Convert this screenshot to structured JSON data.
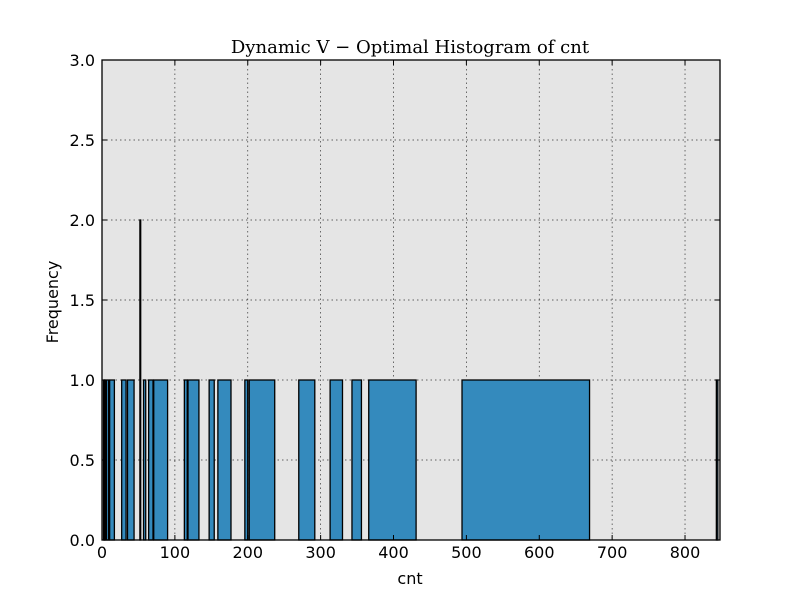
{
  "chart_data": {
    "type": "bar",
    "title": "Dynamic V − Optimal Histogram of cnt",
    "xlabel": "cnt",
    "ylabel": "Frequency",
    "xlim": [
      0,
      848
    ],
    "ylim": [
      0,
      3.0
    ],
    "grid": true,
    "background_color": "#e5e5e5",
    "bar_color": "#348abd",
    "xticks": [
      0,
      100,
      200,
      300,
      400,
      500,
      600,
      700,
      800
    ],
    "yticks": [
      "0.0",
      "0.5",
      "1.0",
      "1.5",
      "2.0",
      "2.5",
      "3.0"
    ],
    "bins": [
      {
        "x0": 2,
        "x1": 2.6,
        "value": 1
      },
      {
        "x0": 3.5,
        "x1": 4.3,
        "value": 1
      },
      {
        "x0": 6,
        "x1": 9,
        "value": 1
      },
      {
        "x0": 10.5,
        "x1": 17,
        "value": 1
      },
      {
        "x0": 27,
        "x1": 33,
        "value": 1
      },
      {
        "x0": 35,
        "x1": 44,
        "value": 1
      },
      {
        "x0": 52,
        "x1": 53,
        "value": 2
      },
      {
        "x0": 57,
        "x1": 60,
        "value": 1
      },
      {
        "x0": 64,
        "x1": 70,
        "value": 1
      },
      {
        "x0": 71,
        "x1": 90,
        "value": 1
      },
      {
        "x0": 113,
        "x1": 117,
        "value": 1
      },
      {
        "x0": 118,
        "x1": 133,
        "value": 1
      },
      {
        "x0": 147,
        "x1": 154,
        "value": 1
      },
      {
        "x0": 159,
        "x1": 177,
        "value": 1
      },
      {
        "x0": 196,
        "x1": 200,
        "value": 1
      },
      {
        "x0": 202,
        "x1": 237,
        "value": 1
      },
      {
        "x0": 270,
        "x1": 292,
        "value": 1
      },
      {
        "x0": 313,
        "x1": 330,
        "value": 1
      },
      {
        "x0": 343,
        "x1": 356,
        "value": 1
      },
      {
        "x0": 366,
        "x1": 431,
        "value": 1
      },
      {
        "x0": 494,
        "x1": 669,
        "value": 1
      },
      {
        "x0": 843,
        "x1": 845,
        "value": 1
      }
    ]
  }
}
